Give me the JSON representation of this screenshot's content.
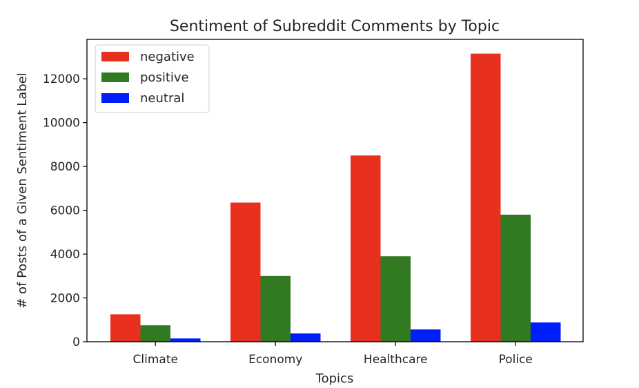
{
  "chart_data": {
    "type": "bar",
    "title": "Sentiment of Subreddit Comments by Topic",
    "xlabel": "Topics",
    "ylabel": "# of Posts of a Given Sentiment Label",
    "categories": [
      "Climate",
      "Economy",
      "Healthcare",
      "Police"
    ],
    "series": [
      {
        "name": "negative",
        "color": "#e8301f",
        "values": [
          1250,
          6350,
          8500,
          13150
        ]
      },
      {
        "name": "positive",
        "color": "#327a22",
        "values": [
          750,
          3000,
          3900,
          5800
        ]
      },
      {
        "name": "neutral",
        "color": "#001efa",
        "values": [
          150,
          380,
          560,
          880
        ]
      }
    ],
    "ylim": [
      0,
      13800
    ],
    "yticks": [
      0,
      2000,
      4000,
      6000,
      8000,
      10000,
      12000
    ],
    "ytick_labels": [
      "0",
      "2000",
      "4000",
      "6000",
      "8000",
      "10000",
      "12000"
    ],
    "grid": false,
    "legend_position": "top-left"
  }
}
